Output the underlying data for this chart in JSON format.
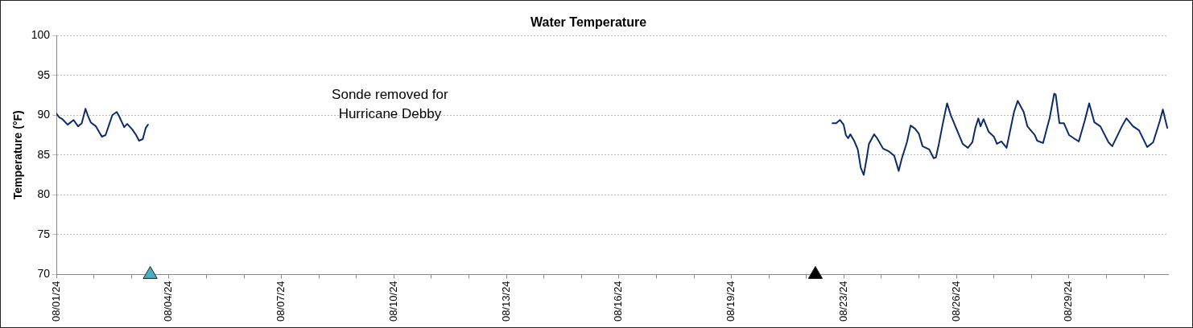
{
  "chart_data": {
    "type": "line",
    "title": "Water Temperature",
    "ylabel": "Temperature (°F)",
    "marker": "none",
    "line_style": "solid",
    "grid": "y",
    "legend": false,
    "xlim": [
      "--08-01T00:00",
      "--09-01T03:00"
    ],
    "ylim": [
      70,
      100
    ],
    "yticks": [
      70,
      75,
      80,
      85,
      90,
      95,
      100
    ],
    "xticks": [
      {
        "value": "--08-01T00:00",
        "label": "08/01/24"
      },
      {
        "value": "--08-02T01:12",
        "label": null
      },
      {
        "value": "--08-03T02:24",
        "label": null
      },
      {
        "value": "--08-04T03:36",
        "label": "08/04/24"
      },
      {
        "value": "--08-05T04:48",
        "label": null
      },
      {
        "value": "--08-06T06:00",
        "label": null
      },
      {
        "value": "--08-07T07:12",
        "label": "08/07/24"
      },
      {
        "value": "--08-08T08:24",
        "label": null
      },
      {
        "value": "--08-09T09:36",
        "label": null
      },
      {
        "value": "--08-10T10:48",
        "label": "08/10/24"
      },
      {
        "value": "--08-11T12:00",
        "label": null
      },
      {
        "value": "--08-12T13:12",
        "label": null
      },
      {
        "value": "--08-13T14:24",
        "label": "08/13/24"
      },
      {
        "value": "--08-14T15:36",
        "label": null
      },
      {
        "value": "--08-15T16:48",
        "label": null
      },
      {
        "value": "--08-16T18:00",
        "label": "08/16/24"
      },
      {
        "value": "--08-17T19:12",
        "label": null
      },
      {
        "value": "--08-18T20:24",
        "label": null
      },
      {
        "value": "--08-19T21:36",
        "label": "08/19/24"
      },
      {
        "value": "--08-20T22:48",
        "label": null
      },
      {
        "value": "--08-22T00:00",
        "label": null
      },
      {
        "value": "--08-23T01:12",
        "label": "08/23/24"
      },
      {
        "value": "--08-24T02:24",
        "label": null
      },
      {
        "value": "--08-25T03:36",
        "label": null
      },
      {
        "value": "--08-26T04:48",
        "label": "08/26/24"
      },
      {
        "value": "--08-27T06:00",
        "label": null
      },
      {
        "value": "--08-28T07:12",
        "label": null
      },
      {
        "value": "--08-29T08:24",
        "label": "08/29/24"
      },
      {
        "value": "--08-30T09:36",
        "label": null
      },
      {
        "value": "--08-31T10:48",
        "label": null
      }
    ],
    "annotations": [
      "Sonde removed for Hurricane Debby"
    ],
    "series": [
      {
        "color": "#0d2a6b",
        "x": [
          "--08-01T00:00",
          "--08-01T02:00",
          "--08-01T04:00",
          "--08-01T07:30",
          "--08-01T11:30",
          "--08-01T14:30",
          "--08-01T17:00",
          "--08-01T19:30",
          "--08-01T21:00",
          "--08-01T23:00",
          "--08-02T02:30",
          "--08-02T06:30",
          "--08-02T09:00",
          "--08-02T13:30",
          "--08-02T16:30",
          "--08-02T18:00",
          "--08-02T21:30",
          "--08-02T23:30",
          "--08-03T03:00",
          "--08-03T05:30",
          "--08-03T07:30",
          "--08-03T10:00",
          "--08-03T12:00",
          "--08-03T13:30",
          "--08-12T00:00",
          "--08-22T17:30",
          "--08-22T20:00",
          "--08-22T22:30",
          "--08-23T01:00",
          "--08-23T02:30",
          "--08-23T04:00",
          "--08-23T05:30",
          "--08-23T08:00",
          "--08-23T10:30",
          "--08-23T12:30",
          "--08-23T14:30",
          "--08-23T16:30",
          "--08-23T18:00",
          "--08-23T21:30",
          "--08-23T23:30",
          "--08-24T03:30",
          "--08-24T07:00",
          "--08-24T11:00",
          "--08-24T14:00",
          "--08-24T16:00",
          "--08-24T19:30",
          "--08-24T22:00",
          "--08-25T01:00",
          "--08-25T03:30",
          "--08-25T06:00",
          "--08-25T10:30",
          "--08-25T13:30",
          "--08-25T15:00",
          "--08-25T17:00",
          "--08-25T19:30",
          "--08-25T22:30",
          "--08-26T01:00",
          "--08-26T05:00",
          "--08-26T09:00",
          "--08-26T12:30",
          "--08-26T15:30",
          "--08-26T17:30",
          "--08-26T19:30",
          "--08-26T21:00",
          "--08-26T23:00",
          "--08-27T02:30",
          "--08-27T06:00",
          "--08-27T08:00",
          "--08-27T11:00",
          "--08-27T14:30",
          "--08-27T19:30",
          "--08-27T22:00",
          "--08-28T02:00",
          "--08-28T04:30",
          "--08-28T09:30",
          "--08-28T11:00",
          "--08-28T15:00",
          "--08-28T19:30",
          "--08-28T22:30",
          "--08-28T23:30",
          "--08-29T02:00",
          "--08-29T05:00",
          "--08-29T08:30",
          "--08-29T12:30",
          "--08-29T15:00",
          "--08-29T19:00",
          "--08-29T22:00",
          "--08-30T01:30",
          "--08-30T05:30",
          "--08-30T11:00",
          "--08-30T13:30",
          "--08-30T20:00",
          "--08-30T23:00",
          "--08-31T03:30",
          "--08-31T07:30",
          "--08-31T13:00",
          "--08-31T17:00",
          "--08-31T21:30",
          "--08-31T23:30",
          "--09-01T02:30"
        ],
        "values": [
          90.2,
          89.7,
          89.5,
          88.8,
          89.4,
          88.6,
          89.0,
          90.8,
          90.0,
          89.1,
          88.6,
          87.3,
          87.5,
          90.0,
          90.4,
          89.9,
          88.5,
          88.9,
          88.2,
          87.5,
          86.8,
          87.0,
          88.4,
          88.8,
          null,
          89.0,
          89.0,
          89.4,
          88.8,
          87.5,
          87.1,
          87.6,
          86.8,
          85.7,
          83.4,
          82.5,
          84.6,
          86.4,
          87.6,
          87.1,
          85.8,
          85.5,
          84.9,
          83.0,
          84.5,
          86.6,
          88.7,
          88.3,
          87.7,
          86.1,
          85.7,
          84.6,
          84.7,
          86.4,
          88.8,
          91.5,
          90.0,
          88.2,
          86.4,
          85.9,
          86.6,
          88.4,
          89.6,
          88.6,
          89.5,
          87.9,
          87.3,
          86.4,
          86.7,
          85.9,
          90.4,
          91.8,
          90.4,
          88.6,
          87.5,
          86.8,
          86.5,
          89.7,
          92.7,
          92.6,
          89.0,
          89.0,
          87.5,
          87.0,
          86.7,
          89.3,
          91.5,
          89.1,
          88.6,
          86.6,
          86.1,
          88.6,
          89.6,
          88.6,
          88.1,
          86.0,
          86.6,
          89.3,
          90.7,
          88.4
        ]
      },
      {
        "type": "scatter",
        "marker": "triangle",
        "x": [
          "--08-03T15:00",
          "--08-22T06:00"
        ],
        "values": [
          70,
          70
        ],
        "colors": [
          "#4bacc6",
          "#000000"
        ]
      }
    ]
  }
}
